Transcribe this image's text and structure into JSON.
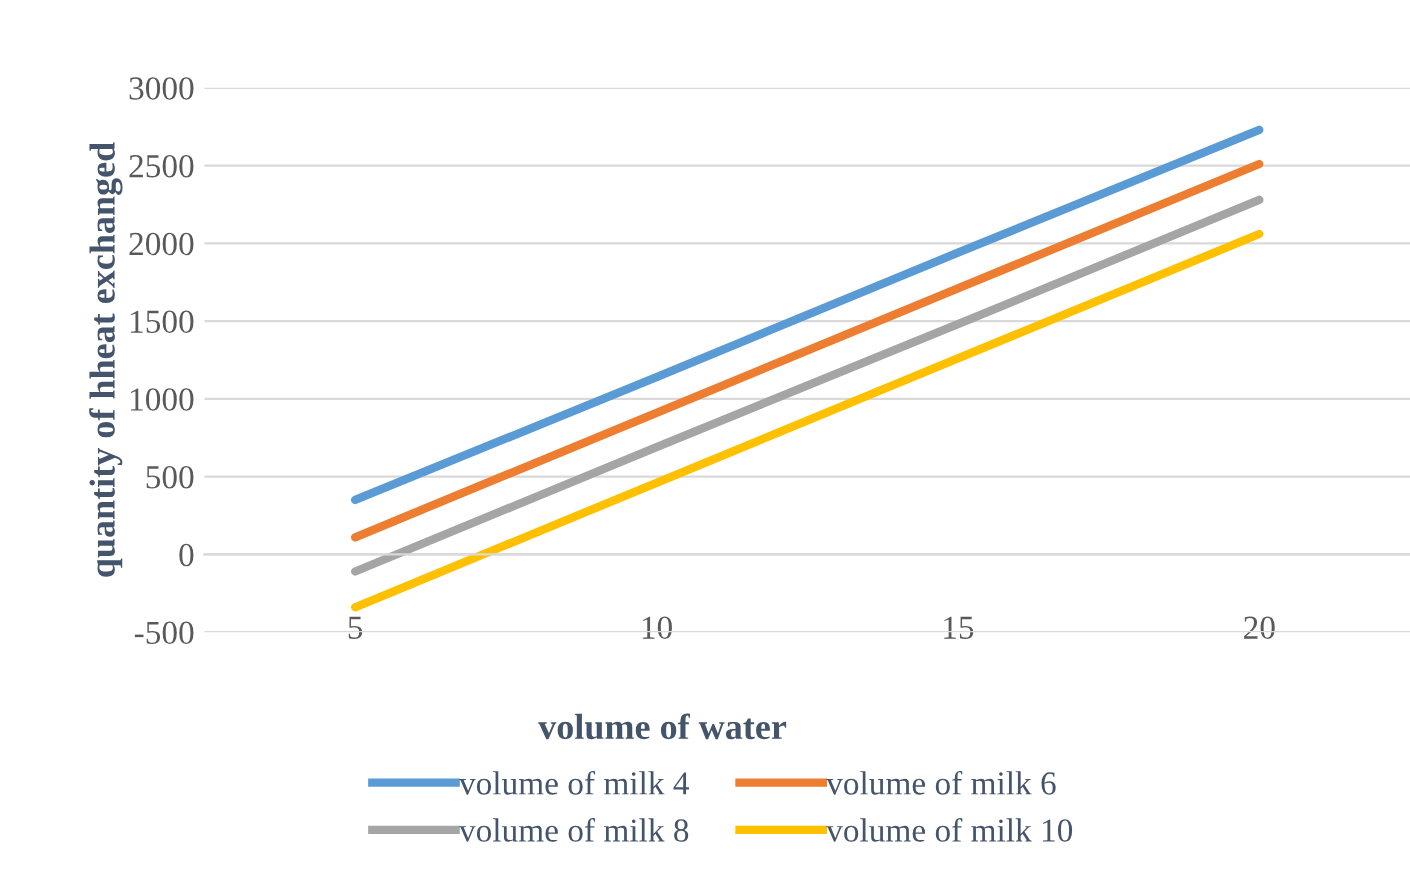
{
  "chart_data": {
    "type": "line",
    "xlabel": "volume of water",
    "ylabel": "quantity of hheat exchanged",
    "categories": [
      "5",
      "10",
      "15",
      "20"
    ],
    "series": [
      {
        "name": "volume of milk 4",
        "color": "#5b9bd5",
        "values": [
          350,
          1140,
          1940,
          2730
        ]
      },
      {
        "name": "volume of milk 6",
        "color": "#ed7d31",
        "values": [
          110,
          910,
          1710,
          2510
        ]
      },
      {
        "name": "volume of milk 8",
        "color": "#a5a5a5",
        "values": [
          -110,
          690,
          1480,
          2280
        ]
      },
      {
        "name": "volume of milk 10",
        "color": "#ffc000",
        "values": [
          -340,
          460,
          1260,
          2060
        ]
      }
    ],
    "ylim": [
      -500,
      3000
    ],
    "yticks": [
      -500,
      0,
      500,
      1000,
      1500,
      2000,
      2500,
      3000
    ],
    "grid": "y",
    "legend": "bottom",
    "marker": "none",
    "line_style": "solid"
  }
}
